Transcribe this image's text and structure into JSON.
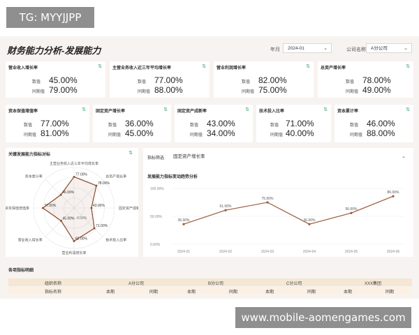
{
  "watermark_top": "TG: MYYJJPP",
  "watermark_bottom": "www.mobile-aomengames.com",
  "header": {
    "title": "财务能力分析-发展能力",
    "year_label": "年月",
    "year_value": "2024-01",
    "company_label": "公司名称",
    "company_value": "A分公司"
  },
  "kpi_row1": [
    {
      "title": "营业收入增长率",
      "value_label": "数值",
      "value": "45.00%",
      "prev_label": "同期值",
      "prev": "79.00%"
    },
    {
      "title": "主营业务收入近三年平均增长率",
      "value_label": "数值",
      "value": "77.00%",
      "prev_label": "同期值",
      "prev": "88.00%"
    },
    {
      "title": "营业利润增长率",
      "value_label": "数值",
      "value": "82.00%",
      "prev_label": "同期值",
      "prev": "75.00%"
    },
    {
      "title": "总资产增长率",
      "value_label": "数值",
      "value": "78.00%",
      "prev_label": "同期值",
      "prev": "49.00%"
    }
  ],
  "kpi_row2": [
    {
      "title": "资本保值增值率",
      "value_label": "数值",
      "value": "77.00%",
      "prev_label": "同期值",
      "prev": "81.00%"
    },
    {
      "title": "固定资产增长率",
      "value_label": "数值",
      "value": "36.00%",
      "prev_label": "同期值",
      "prev": "45.00%"
    },
    {
      "title": "固定资产成新率",
      "value_label": "数值",
      "value": "43.00%",
      "prev_label": "同期值",
      "prev": "34.00%"
    },
    {
      "title": "技术投入比率",
      "value_label": "数值",
      "value": "71.00%",
      "prev_label": "同期值",
      "prev": "40.00%"
    },
    {
      "title": "资本累计率",
      "value_label": "数值",
      "value": "46.00%",
      "prev_label": "同期值",
      "prev": "88.00%"
    }
  ],
  "radar_panel": {
    "title": "关键发展能力指标对标"
  },
  "trend_panel": {
    "filter_label": "指标筛选",
    "filter_value": "固定资产增长率",
    "title": "发展能力指标变动趋势分析"
  },
  "chart_data": [
    {
      "type": "radar",
      "title": "",
      "axes": [
        "主营业务收入近三年平均增长率",
        "总资产增长率",
        "固定资产成新率",
        "技术投入比率",
        "营业利润增长率",
        "营业收入增长率",
        "资本保值增值率",
        "资本累计率"
      ],
      "values": [
        77,
        78,
        43,
        71,
        82,
        45,
        77,
        46
      ],
      "value_labels": [
        "77.00%",
        "78.00%",
        "43.00%",
        "71.00%",
        "82.00%",
        "45.00%",
        "77.00%",
        "46.00%"
      ],
      "center_label": "0.00%",
      "color": "#8b4a2b"
    },
    {
      "type": "line",
      "title": "",
      "x": [
        "2024-01",
        "2024-02",
        "2024-03",
        "2024-04",
        "2024-05",
        "2024-06"
      ],
      "y": [
        36,
        61,
        75,
        36,
        56,
        86
      ],
      "point_labels": [
        "36.00%",
        "61.00%",
        "75.00%",
        "36.00%",
        "56.00%",
        "86.00%"
      ],
      "yticks": [
        "0.00%",
        "50.00%",
        "100.00%"
      ],
      "ylim": [
        0,
        100
      ],
      "color": "#9b5a3a"
    }
  ],
  "detail_table": {
    "title": "各项指标明细",
    "row1": {
      "col0": "组织名称",
      "col1": "A分公司",
      "col2": "B分公司",
      "col3": "C分公司",
      "col4": "XXX集团"
    },
    "row2": {
      "col0": "指标名称",
      "c1": "本期",
      "c2": "同期",
      "c3": "本期",
      "c4": "同期",
      "c5": "本期",
      "c6": "同期",
      "c7": "本期",
      "c8": "同期"
    }
  },
  "colors": {
    "background": "#f7f3f0",
    "accent": "#8b4a2b",
    "table_header": "#f6e6d4",
    "icon_green": "#3aa07a"
  }
}
